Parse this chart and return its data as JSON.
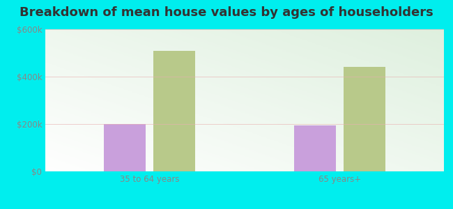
{
  "title": "Breakdown of mean house values by ages of householders",
  "categories": [
    "35 to 64 years",
    "65 years+"
  ],
  "series": {
    "Gisela": [
      200000,
      195000
    ],
    "Arizona": [
      510000,
      440000
    ]
  },
  "bar_colors": {
    "Gisela": "#c9a0dc",
    "Arizona": "#b8c98a"
  },
  "ylim": [
    0,
    600000
  ],
  "yticks": [
    0,
    200000,
    400000,
    600000
  ],
  "ytick_labels": [
    "$0",
    "$200k",
    "$400k",
    "$600k"
  ],
  "background_color": "#00eeee",
  "title_fontsize": 13,
  "tick_fontsize": 8.5,
  "legend_fontsize": 9,
  "bar_width": 0.22,
  "tick_color": "#888888"
}
